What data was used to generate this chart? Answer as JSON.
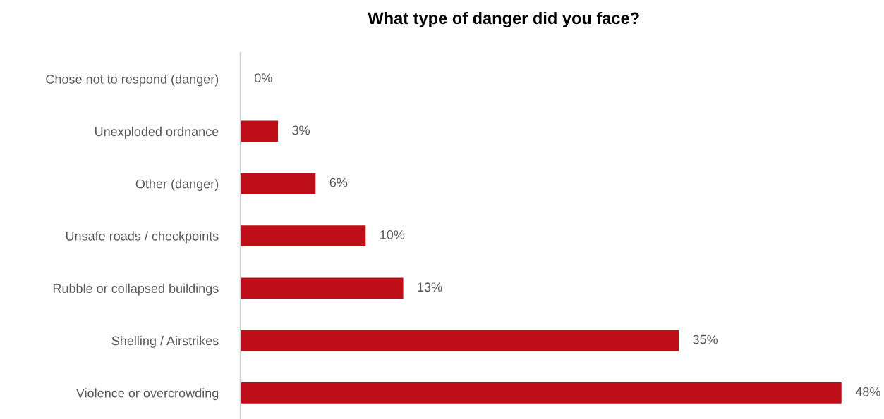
{
  "chart_data": {
    "type": "bar",
    "orientation": "horizontal",
    "title": "What type of danger did you face?",
    "categories": [
      "Chose not to respond (danger)",
      "Unexploded ordnance",
      "Other (danger)",
      "Unsafe roads / checkpoints",
      "Rubble or collapsed buildings",
      "Shelling / Airstrikes",
      "Violence or overcrowding"
    ],
    "values": [
      0,
      3,
      6,
      10,
      13,
      35,
      48
    ],
    "value_labels": [
      "0%",
      "3%",
      "6%",
      "10%",
      "13%",
      "35%",
      "48%"
    ],
    "color": "#be0f19",
    "tick_labels": "y",
    "grid": false,
    "legend": false
  }
}
